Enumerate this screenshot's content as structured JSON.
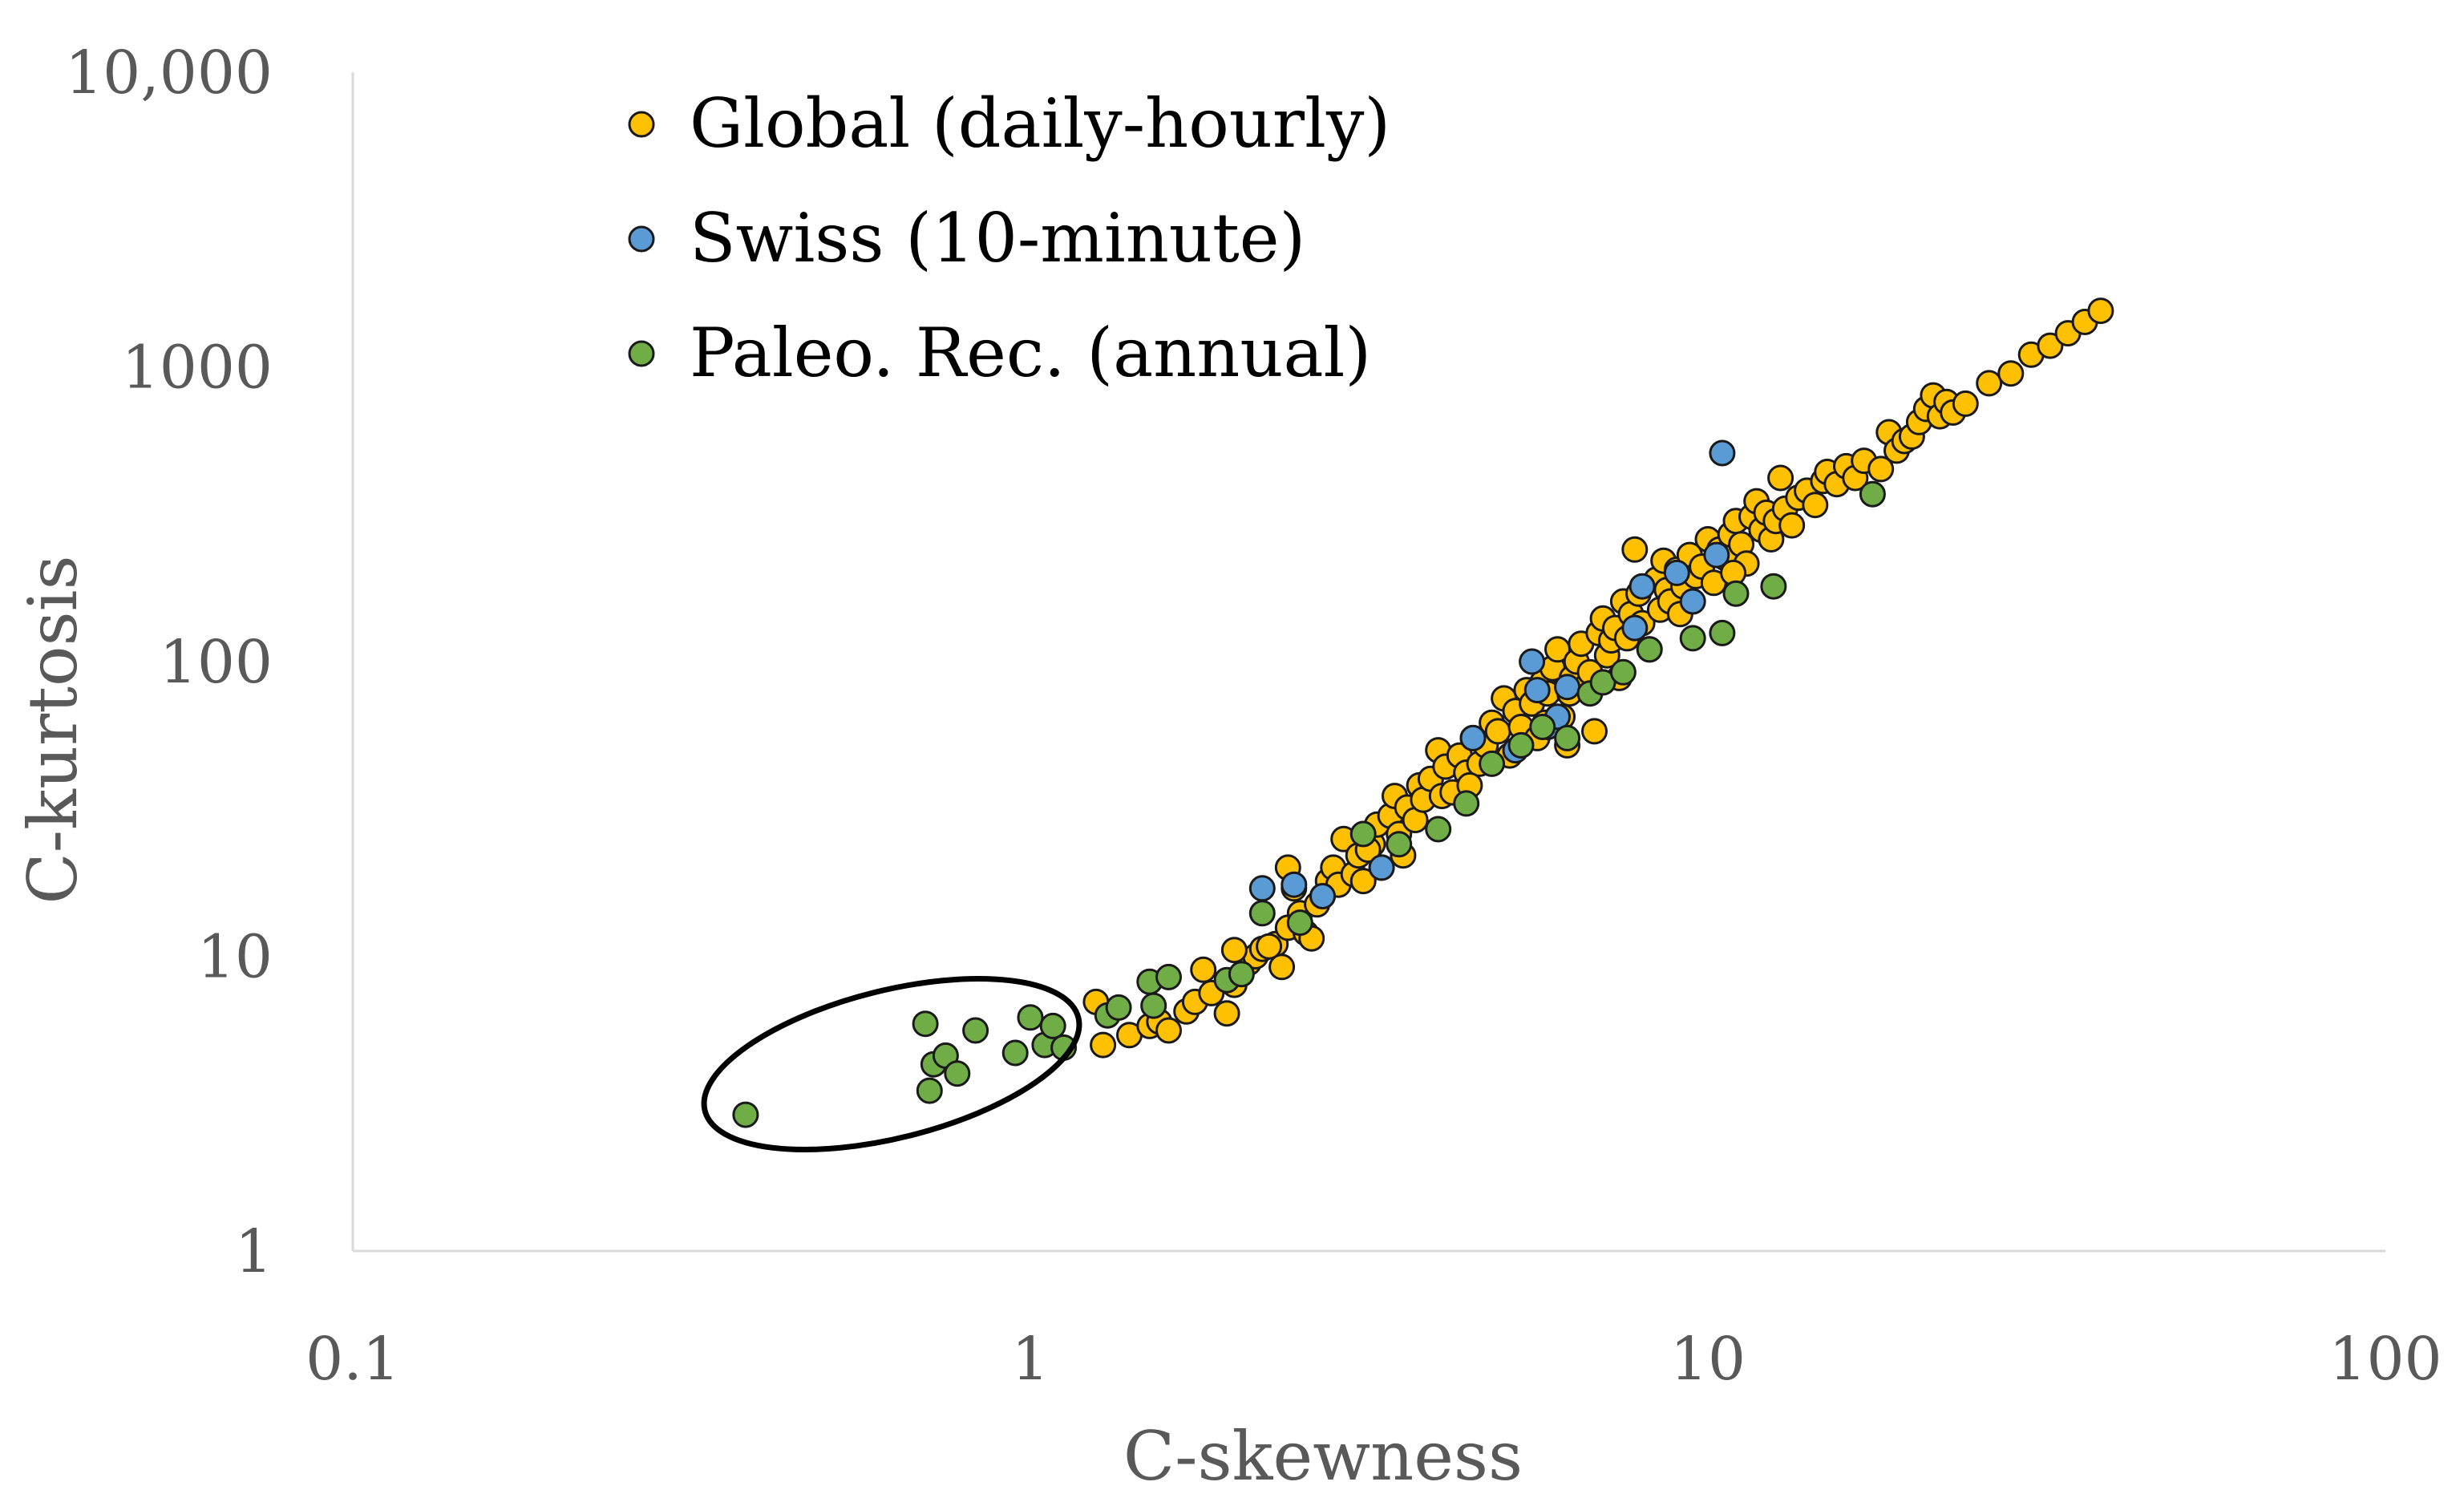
{
  "chart_data": {
    "type": "scatter",
    "title": "",
    "xlabel": "C-skewness",
    "ylabel": "C-kurtosis",
    "x_scale": "log",
    "y_scale": "log",
    "xlim": [
      0.1,
      100
    ],
    "ylim": [
      1,
      10000
    ],
    "x_ticks": [
      "0.1",
      "1",
      "10",
      "100"
    ],
    "y_ticks": [
      "1",
      "10",
      "100",
      "1000",
      "10,000"
    ],
    "grid": false,
    "legend_position": "top-left",
    "annotation": "ellipse around low-skewness Paleo. Rec. points",
    "series": [
      {
        "name": "Global (daily-hourly)",
        "color": "#ffc000",
        "points": [
          [
            1.25,
            7.0
          ],
          [
            1.28,
            5.0
          ],
          [
            1.4,
            5.4
          ],
          [
            1.5,
            5.8
          ],
          [
            1.55,
            6.0
          ],
          [
            1.6,
            5.6
          ],
          [
            1.7,
            6.5
          ],
          [
            1.75,
            7.0
          ],
          [
            1.8,
            9.0
          ],
          [
            1.85,
            7.5
          ],
          [
            1.95,
            6.4
          ],
          [
            2.0,
            8.0
          ],
          [
            2.1,
            9.5
          ],
          [
            2.15,
            10.0
          ],
          [
            2.2,
            10.6
          ],
          [
            2.3,
            11.0
          ],
          [
            2.35,
            9.2
          ],
          [
            2.4,
            12.5
          ],
          [
            2.4,
            20.0
          ],
          [
            2.45,
            17.0
          ],
          [
            2.5,
            14.0
          ],
          [
            2.55,
            12.0
          ],
          [
            2.6,
            11.5
          ],
          [
            2.65,
            15.0
          ],
          [
            2.7,
            16.0
          ],
          [
            2.75,
            18.0
          ],
          [
            2.8,
            20.0
          ],
          [
            2.85,
            17.5
          ],
          [
            2.9,
            25.0
          ],
          [
            3.0,
            19.0
          ],
          [
            3.05,
            22.0
          ],
          [
            3.1,
            18.0
          ],
          [
            3.2,
            24.0
          ],
          [
            3.25,
            28.0
          ],
          [
            3.3,
            20.0
          ],
          [
            3.4,
            30.0
          ],
          [
            3.45,
            35.0
          ],
          [
            3.5,
            26.0
          ],
          [
            3.55,
            22.0
          ],
          [
            3.6,
            32.0
          ],
          [
            3.7,
            29.0
          ],
          [
            3.75,
            38.0
          ],
          [
            3.8,
            34.0
          ],
          [
            3.9,
            40.0
          ],
          [
            4.0,
            50.0
          ],
          [
            4.05,
            35.0
          ],
          [
            4.1,
            44.0
          ],
          [
            4.2,
            36.0
          ],
          [
            4.3,
            48.0
          ],
          [
            4.4,
            42.0
          ],
          [
            4.5,
            55.0
          ],
          [
            4.6,
            45.0
          ],
          [
            4.7,
            52.0
          ],
          [
            4.8,
            62.0
          ],
          [
            4.9,
            58.0
          ],
          [
            5.0,
            75.0
          ],
          [
            5.1,
            48.0
          ],
          [
            5.2,
            68.0
          ],
          [
            5.3,
            60.0
          ],
          [
            5.4,
            80.0
          ],
          [
            5.5,
            72.0
          ],
          [
            5.6,
            55.0
          ],
          [
            5.7,
            85.0
          ],
          [
            5.8,
            78.0
          ],
          [
            5.9,
            95.0
          ],
          [
            6.0,
            110.0
          ],
          [
            6.1,
            65.0
          ],
          [
            6.2,
            52.0
          ],
          [
            6.3,
            88.0
          ],
          [
            6.4,
            100.0
          ],
          [
            6.5,
            115.0
          ],
          [
            6.6,
            82.0
          ],
          [
            6.7,
            92.0
          ],
          [
            6.8,
            58.0
          ],
          [
            6.9,
            125.0
          ],
          [
            7.0,
            140.0
          ],
          [
            7.1,
            105.0
          ],
          [
            7.2,
            118.0
          ],
          [
            7.3,
            130.0
          ],
          [
            7.5,
            160.0
          ],
          [
            7.6,
            120.0
          ],
          [
            7.7,
            145.0
          ],
          [
            7.8,
            240.0
          ],
          [
            7.9,
            170.0
          ],
          [
            8.0,
            135.0
          ],
          [
            8.2,
            110.0
          ],
          [
            8.4,
            190.0
          ],
          [
            8.5,
            150.0
          ],
          [
            8.6,
            220.0
          ],
          [
            8.7,
            175.0
          ],
          [
            8.8,
            160.0
          ],
          [
            9.0,
            205.0
          ],
          [
            9.2,
            180.0
          ],
          [
            9.4,
            230.0
          ],
          [
            9.6,
            195.0
          ],
          [
            9.8,
            210.0
          ],
          [
            10.0,
            260.0
          ],
          [
            10.2,
            185.0
          ],
          [
            10.4,
            240.0
          ],
          [
            10.6,
            225.0
          ],
          [
            10.8,
            270.0
          ],
          [
            11.0,
            300.0
          ],
          [
            11.2,
            250.0
          ],
          [
            11.4,
            215.0
          ],
          [
            11.6,
            310.0
          ],
          [
            11.8,
            350.0
          ],
          [
            12.0,
            280.0
          ],
          [
            12.2,
            320.0
          ],
          [
            12.4,
            260.0
          ],
          [
            12.6,
            300.0
          ],
          [
            12.8,
            420.0
          ],
          [
            13.0,
            330.0
          ],
          [
            13.3,
            290.0
          ],
          [
            13.6,
            360.0
          ],
          [
            14.0,
            380.0
          ],
          [
            14.4,
            340.0
          ],
          [
            14.8,
            410.0
          ],
          [
            15.0,
            440.0
          ],
          [
            15.5,
            400.0
          ],
          [
            16.0,
            460.0
          ],
          [
            16.5,
            420.0
          ],
          [
            17.0,
            480.0
          ],
          [
            18.0,
            450.0
          ],
          [
            18.5,
            600.0
          ],
          [
            19.0,
            520.0
          ],
          [
            19.5,
            560.0
          ],
          [
            20.0,
            580.0
          ],
          [
            20.5,
            650.0
          ],
          [
            21.0,
            720.0
          ],
          [
            21.5,
            800.0
          ],
          [
            22.0,
            680.0
          ],
          [
            22.5,
            760.0
          ],
          [
            23.0,
            700.0
          ],
          [
            24.0,
            750.0
          ],
          [
            26.0,
            880.0
          ],
          [
            28.0,
            950.0
          ],
          [
            30.0,
            1100.0
          ],
          [
            32.0,
            1180.0
          ],
          [
            34.0,
            1300.0
          ],
          [
            36.0,
            1420.0
          ],
          [
            38.0,
            1550.0
          ],
          [
            2.0,
            10.5
          ],
          [
            2.25,
            10.8
          ],
          [
            3.15,
            23.0
          ],
          [
            4.45,
            38.0
          ],
          [
            5.75,
            62.0
          ],
          [
            6.25,
            78.0
          ],
          [
            7.4,
            88.0
          ],
          [
            9.1,
            145.0
          ],
          [
            10.9,
            200.0
          ]
        ]
      },
      {
        "name": "Swiss (10-minute)",
        "color": "#5b9bd5",
        "points": [
          [
            2.2,
            17.0
          ],
          [
            2.45,
            17.5
          ],
          [
            2.7,
            16.0
          ],
          [
            3.3,
            20.0
          ],
          [
            4.5,
            55.0
          ],
          [
            5.2,
            50.0
          ],
          [
            5.5,
            100.0
          ],
          [
            5.6,
            80.0
          ],
          [
            5.8,
            60.0
          ],
          [
            6.0,
            65.0
          ],
          [
            6.2,
            82.0
          ],
          [
            7.8,
            130.0
          ],
          [
            8.0,
            180.0
          ],
          [
            9.0,
            200.0
          ],
          [
            9.5,
            160.0
          ],
          [
            10.3,
            230.0
          ],
          [
            10.5,
            510.0
          ]
        ]
      },
      {
        "name": "Paleo. Rec. (annual)",
        "color": "#70ad47",
        "points": [
          [
            0.38,
            2.9
          ],
          [
            0.7,
            5.9
          ],
          [
            0.72,
            4.3
          ],
          [
            0.71,
            3.5
          ],
          [
            0.75,
            4.6
          ],
          [
            0.78,
            4.0
          ],
          [
            0.83,
            5.6
          ],
          [
            0.95,
            4.7
          ],
          [
            1.0,
            6.2
          ],
          [
            1.05,
            5.0
          ],
          [
            1.08,
            5.8
          ],
          [
            1.12,
            4.9
          ],
          [
            1.3,
            6.3
          ],
          [
            1.35,
            6.7
          ],
          [
            1.5,
            8.2
          ],
          [
            1.52,
            6.8
          ],
          [
            1.6,
            8.5
          ],
          [
            1.95,
            8.3
          ],
          [
            2.05,
            8.7
          ],
          [
            2.2,
            14.0
          ],
          [
            2.5,
            13.0
          ],
          [
            3.1,
            26.0
          ],
          [
            3.5,
            24.0
          ],
          [
            4.0,
            27.0
          ],
          [
            4.4,
            33.0
          ],
          [
            4.8,
            45.0
          ],
          [
            5.3,
            52.0
          ],
          [
            5.7,
            60.0
          ],
          [
            6.2,
            55.0
          ],
          [
            6.7,
            78.0
          ],
          [
            7.0,
            85.0
          ],
          [
            7.5,
            92.0
          ],
          [
            8.2,
            110.0
          ],
          [
            9.5,
            120.0
          ],
          [
            10.5,
            125.0
          ],
          [
            11.0,
            170.0
          ],
          [
            12.5,
            180.0
          ],
          [
            17.5,
            370.0
          ]
        ]
      }
    ]
  }
}
